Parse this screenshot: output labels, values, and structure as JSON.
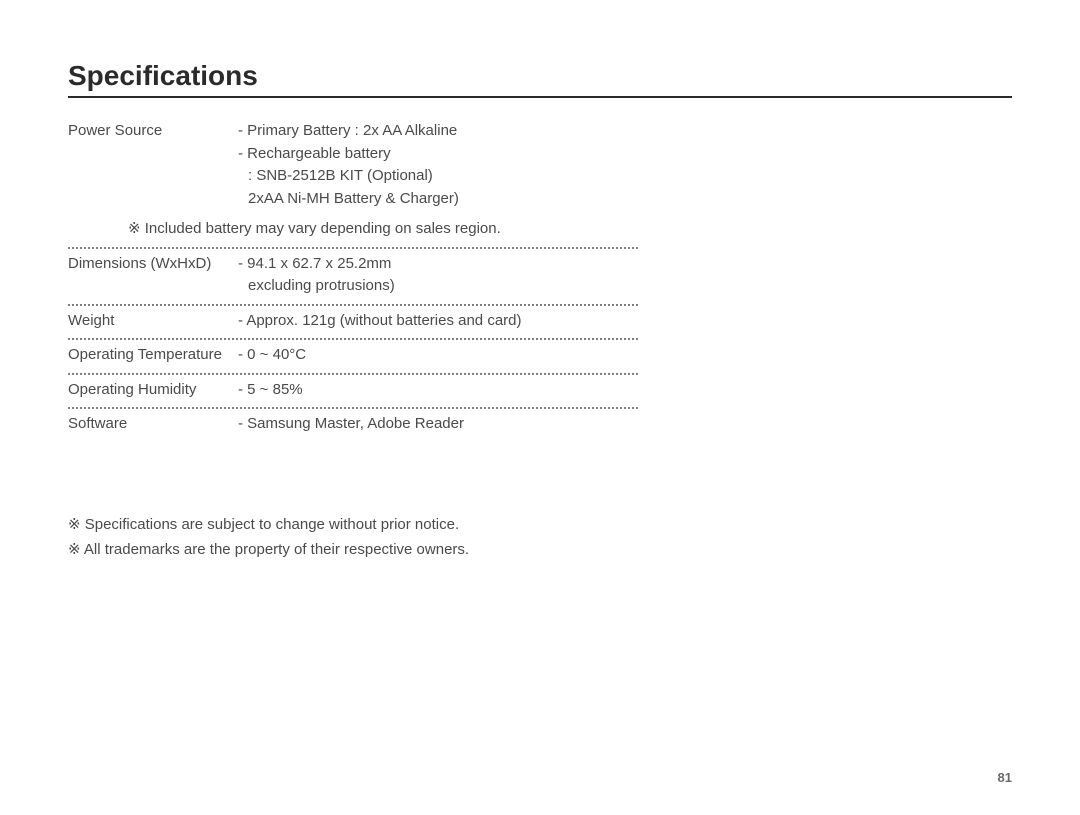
{
  "title": "Specifications",
  "specs": {
    "power": {
      "label": "Power Source",
      "l1": "- Primary Battery : 2x AA Alkaline",
      "l2": "- Rechargeable battery",
      "l3": ": SNB-2512B KIT (Optional)",
      "l4": "2xAA Ni-MH Battery & Charger)",
      "note": "※ Included battery may vary depending on sales region."
    },
    "dimensions": {
      "label": "Dimensions (WxHxD)",
      "l1": "- 94.1 x 62.7 x 25.2mm",
      "l2": "excluding protrusions)"
    },
    "weight": {
      "label": "Weight",
      "value": "- Approx. 121g (without batteries and card)"
    },
    "temp": {
      "label": "Operating Temperature",
      "value": "- 0 ~ 40°C"
    },
    "humidity": {
      "label": "Operating Humidity",
      "value": "- 5 ~ 85%"
    },
    "software": {
      "label": "Software",
      "value": "- Samsung Master, Adobe Reader"
    }
  },
  "footnotes": {
    "f1": "※ Specifications are subject to change without prior notice.",
    "f2": "※ All trademarks are the property of their respective owners."
  },
  "page_number": "81",
  "colors": {
    "text": "#4a4a4a",
    "title": "#2b2b2b",
    "dotted": "#808080",
    "bg": "#ffffff"
  },
  "typography": {
    "title_fontsize": 28,
    "body_fontsize": 15,
    "page_fontsize": 13
  }
}
